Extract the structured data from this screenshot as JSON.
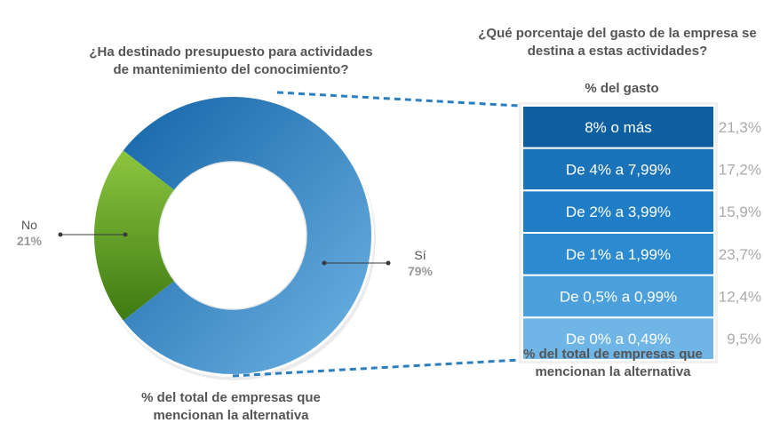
{
  "chart_data": [
    {
      "type": "pie",
      "variant": "donut",
      "title_lines": [
        "¿Ha destinado presupuesto para actividades",
        "de mantenimiento del conocimiento?"
      ],
      "caption_lines": [
        "% del total de empresas que",
        "mencionan la alternativa"
      ],
      "slices": [
        {
          "name": "Sí",
          "value": 79,
          "label": "79%",
          "colors": [
            "#1565a8",
            "#6fb4e4"
          ]
        },
        {
          "name": "No",
          "value": 21,
          "label": "21%",
          "colors": [
            "#8cc63f",
            "#3d7a12"
          ]
        }
      ]
    },
    {
      "type": "bar",
      "variant": "stacked-breakdown",
      "title_lines": [
        "¿Qué porcentaje del gasto de la empresa se",
        "destina a estas actividades?"
      ],
      "subtitle": "% del gasto",
      "caption_lines": [
        "% del total de empresas que",
        "mencionan la alternativa"
      ],
      "categories": [
        "8% o más",
        "De 4% a 7,99%",
        "De 2% a 3,99%",
        "De 1% a 1,99%",
        "De 0,5% a 0,99%",
        "De 0% a 0,49%"
      ],
      "values": [
        21.3,
        17.2,
        15.9,
        23.7,
        12.4,
        9.5
      ],
      "value_labels": [
        "21,3%",
        "17,2%",
        "15,9%",
        "23,7%",
        "12,4%",
        "9,5%"
      ],
      "colors": [
        "#0e5fa0",
        "#1a72b9",
        "#1f7ec6",
        "#2b8ad0",
        "#4b9fda",
        "#6fb5e6"
      ]
    }
  ]
}
